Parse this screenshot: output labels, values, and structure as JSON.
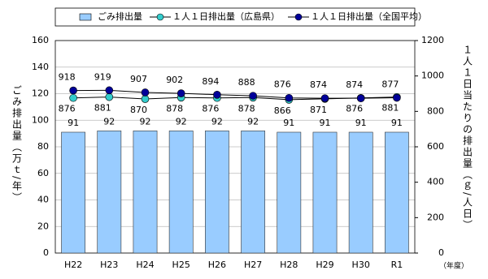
{
  "chart_data": {
    "type": "bar",
    "y_label": "ごみ排出量（万ｔ/年）",
    "y2_label": "１人１日当たりの排出量（ｇ/人日）",
    "x_unit": "（年度）",
    "categories": [
      "H22",
      "H23",
      "H24",
      "H25",
      "H26",
      "H27",
      "H28",
      "H29",
      "H30",
      "R1"
    ],
    "ylim": [
      0,
      160
    ],
    "yticks": [
      0,
      20,
      40,
      60,
      80,
      100,
      120,
      140,
      160
    ],
    "y2lim": [
      0,
      1200
    ],
    "y2ticks": [
      0,
      200,
      400,
      600,
      800,
      1000,
      1200
    ],
    "grid": true,
    "series": [
      {
        "name": "ごみ排出量",
        "type": "bar",
        "color": "#99ccff",
        "values": [
          91,
          92,
          92,
          92,
          92,
          92,
          91,
          91,
          91,
          91
        ]
      },
      {
        "name": "１人１日排出量（広島県）",
        "type": "line",
        "axis": "y2",
        "color": "#33cccc",
        "values": [
          876,
          881,
          870,
          878,
          876,
          878,
          866,
          871,
          876,
          881
        ]
      },
      {
        "name": "１人１日排出量（全国平均）",
        "type": "line",
        "axis": "y2",
        "color": "#000099",
        "values": [
          918,
          919,
          907,
          902,
          894,
          888,
          876,
          874,
          874,
          877
        ]
      }
    ]
  }
}
